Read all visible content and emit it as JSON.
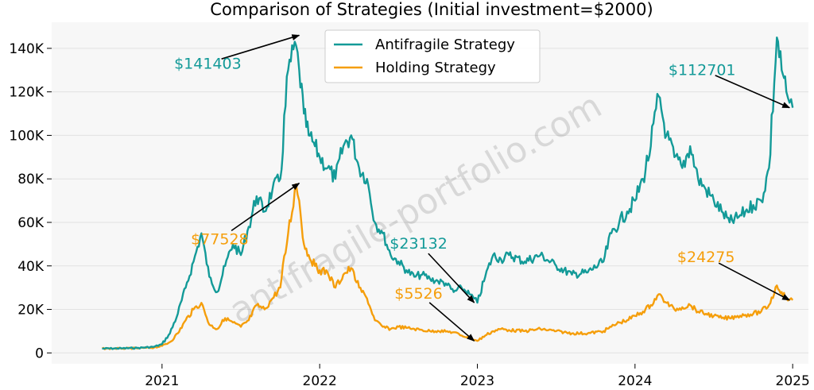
{
  "chart_data": {
    "type": "line",
    "title": "Comparison of Strategies (Initial investment=$2000)",
    "xlabel": "",
    "ylabel": "",
    "x_ticks": [
      "2021",
      "2022",
      "2023",
      "2024",
      "2025"
    ],
    "x_tick_values": [
      2021.0,
      2022.0,
      2023.0,
      2024.0,
      2025.0
    ],
    "xlim": [
      2020.3,
      2025.1
    ],
    "y_ticks": [
      "0",
      "20K",
      "40K",
      "60K",
      "80K",
      "100K",
      "120K",
      "140K"
    ],
    "y_tick_values": [
      0,
      20000,
      40000,
      60000,
      80000,
      100000,
      120000,
      140000
    ],
    "ylim": [
      -5000,
      152000
    ],
    "grid": true,
    "legend_position": "top-center",
    "watermark": "antifragile-portfolio.com",
    "series": [
      {
        "name": "Antifragile Strategy",
        "color": "#139a98",
        "x": [
          2020.62,
          2020.75,
          2020.85,
          2020.95,
          2021.0,
          2021.05,
          2021.1,
          2021.15,
          2021.2,
          2021.25,
          2021.3,
          2021.35,
          2021.4,
          2021.45,
          2021.5,
          2021.55,
          2021.6,
          2021.65,
          2021.7,
          2021.75,
          2021.8,
          2021.85,
          2021.87,
          2021.9,
          2021.93,
          2021.97,
          2022.0,
          2022.05,
          2022.1,
          2022.15,
          2022.2,
          2022.25,
          2022.3,
          2022.35,
          2022.4,
          2022.45,
          2022.5,
          2022.55,
          2022.6,
          2022.65,
          2022.7,
          2022.75,
          2022.8,
          2022.85,
          2022.9,
          2022.95,
          2022.98,
          2023.0,
          2023.05,
          2023.1,
          2023.15,
          2023.2,
          2023.3,
          2023.4,
          2023.5,
          2023.6,
          2023.7,
          2023.8,
          2023.85,
          2023.9,
          2023.95,
          2024.0,
          2024.05,
          2024.1,
          2024.15,
          2024.2,
          2024.25,
          2024.3,
          2024.35,
          2024.4,
          2024.45,
          2024.5,
          2024.55,
          2024.6,
          2024.65,
          2024.7,
          2024.75,
          2024.8,
          2024.85,
          2024.9,
          2024.93,
          2024.96,
          2024.98,
          2025.0
        ],
        "values": [
          2000,
          2100,
          2300,
          2800,
          4000,
          9000,
          18000,
          30000,
          42000,
          55000,
          35000,
          28000,
          40000,
          50000,
          45000,
          58000,
          72000,
          65000,
          75000,
          80000,
          130000,
          141403,
          130000,
          110000,
          100000,
          95000,
          90000,
          85000,
          80000,
          95000,
          100000,
          85000,
          80000,
          60000,
          55000,
          45000,
          42000,
          38000,
          35000,
          36000,
          34000,
          33000,
          32000,
          28000,
          30000,
          27000,
          25000,
          23132,
          35000,
          45000,
          43000,
          45000,
          42000,
          45000,
          40000,
          36000,
          37000,
          42000,
          55000,
          60000,
          65000,
          70000,
          80000,
          95000,
          118000,
          100000,
          90000,
          85000,
          95000,
          80000,
          75000,
          70000,
          65000,
          60000,
          62000,
          65000,
          68000,
          70000,
          85000,
          145000,
          130000,
          120000,
          115000,
          112701
        ]
      },
      {
        "name": "Holding Strategy",
        "color": "#f59e0b",
        "x": [
          2020.62,
          2020.75,
          2020.85,
          2020.95,
          2021.0,
          2021.05,
          2021.1,
          2021.15,
          2021.2,
          2021.25,
          2021.3,
          2021.35,
          2021.4,
          2021.45,
          2021.5,
          2021.55,
          2021.6,
          2021.65,
          2021.7,
          2021.75,
          2021.8,
          2021.85,
          2021.87,
          2021.9,
          2021.93,
          2021.97,
          2022.0,
          2022.05,
          2022.1,
          2022.15,
          2022.2,
          2022.25,
          2022.3,
          2022.35,
          2022.4,
          2022.45,
          2022.5,
          2022.55,
          2022.6,
          2022.65,
          2022.7,
          2022.75,
          2022.8,
          2022.85,
          2022.9,
          2022.95,
          2022.98,
          2023.0,
          2023.05,
          2023.1,
          2023.15,
          2023.2,
          2023.3,
          2023.4,
          2023.5,
          2023.6,
          2023.7,
          2023.8,
          2023.85,
          2023.9,
          2023.95,
          2024.0,
          2024.05,
          2024.1,
          2024.15,
          2024.2,
          2024.25,
          2024.3,
          2024.35,
          2024.4,
          2024.45,
          2024.5,
          2024.55,
          2024.6,
          2024.65,
          2024.7,
          2024.75,
          2024.8,
          2024.85,
          2024.9,
          2024.93,
          2024.96,
          2024.98,
          2025.0
        ],
        "values": [
          2000,
          2050,
          2150,
          2500,
          3200,
          5000,
          9000,
          15000,
          20000,
          23000,
          13000,
          11000,
          16000,
          14000,
          12000,
          15000,
          22000,
          20000,
          25000,
          30000,
          55000,
          77528,
          70000,
          50000,
          45000,
          40000,
          38000,
          37000,
          30000,
          36000,
          39000,
          30000,
          25000,
          15000,
          12000,
          11000,
          12000,
          11500,
          11000,
          10500,
          10000,
          10200,
          9800,
          9500,
          8000,
          7000,
          6000,
          5526,
          8000,
          10000,
          11000,
          10500,
          10000,
          11000,
          10000,
          9000,
          9000,
          10000,
          12000,
          14000,
          15000,
          17000,
          19000,
          22000,
          27000,
          23000,
          20000,
          21000,
          22000,
          19000,
          18000,
          17000,
          16000,
          16000,
          17000,
          17500,
          18000,
          19000,
          22000,
          31000,
          28000,
          25000,
          24500,
          24275
        ]
      }
    ],
    "annotations": [
      {
        "text": "$141403",
        "series": 0,
        "x": 2021.87,
        "y": 146000,
        "color": "#139a98"
      },
      {
        "text": "$77528",
        "series": 1,
        "x": 2021.87,
        "y": 78000,
        "color": "#f59e0b"
      },
      {
        "text": "$23132",
        "series": 0,
        "x": 2022.98,
        "y": 23132,
        "color": "#139a98"
      },
      {
        "text": "$5526",
        "series": 1,
        "x": 2022.98,
        "y": 5526,
        "color": "#f59e0b"
      },
      {
        "text": "$112701",
        "series": 0,
        "x": 2024.98,
        "y": 112701,
        "color": "#139a98"
      },
      {
        "text": "$24275",
        "series": 1,
        "x": 2024.98,
        "y": 24275,
        "color": "#f59e0b"
      }
    ]
  }
}
